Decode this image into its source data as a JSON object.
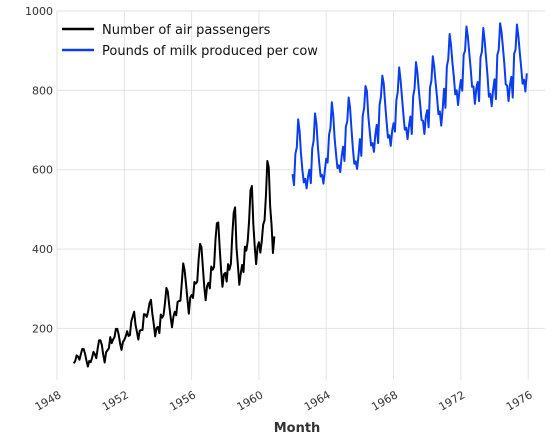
{
  "chart_data": {
    "type": "line",
    "xlabel": "Month",
    "ylabel": "",
    "xlim": [
      1948.0,
      1977.0
    ],
    "ylim": [
      70,
      1000
    ],
    "grid": true,
    "legend_position": "top-left",
    "x_ticks": [
      1948,
      1952,
      1956,
      1960,
      1964,
      1968,
      1972,
      1976
    ],
    "y_ticks": [
      200,
      400,
      600,
      800,
      1000
    ],
    "series": [
      {
        "name": "Number of air passengers",
        "color": "#000000",
        "start_year": 1949,
        "values": [
          112,
          118,
          132,
          129,
          121,
          135,
          148,
          148,
          136,
          119,
          104,
          118,
          115,
          126,
          141,
          135,
          125,
          149,
          170,
          170,
          158,
          133,
          114,
          140,
          145,
          150,
          178,
          163,
          172,
          178,
          199,
          199,
          184,
          162,
          146,
          166,
          171,
          180,
          193,
          181,
          183,
          218,
          230,
          242,
          209,
          191,
          172,
          194,
          196,
          196,
          236,
          235,
          229,
          243,
          264,
          272,
          237,
          211,
          180,
          201,
          204,
          188,
          235,
          227,
          234,
          264,
          302,
          293,
          259,
          229,
          203,
          229,
          242,
          233,
          267,
          269,
          270,
          315,
          364,
          347,
          312,
          274,
          237,
          278,
          284,
          277,
          317,
          313,
          318,
          374,
          413,
          405,
          355,
          306,
          271,
          306,
          315,
          301,
          356,
          348,
          355,
          422,
          465,
          467,
          404,
          347,
          305,
          336,
          340,
          318,
          362,
          348,
          363,
          435,
          491,
          505,
          404,
          359,
          310,
          337,
          360,
          342,
          406,
          396,
          420,
          472,
          548,
          559,
          463,
          407,
          362,
          405,
          417,
          391,
          419,
          461,
          472,
          535,
          622,
          606,
          508,
          461,
          390,
          432
        ]
      },
      {
        "name": "Pounds of milk produced per cow",
        "color": "#0a3cf0",
        "start_year": 1962,
        "values": [
          589,
          561,
          640,
          656,
          727,
          697,
          640,
          599,
          568,
          577,
          553,
          582,
          600,
          566,
          653,
          673,
          742,
          716,
          660,
          617,
          583,
          587,
          565,
          598,
          628,
          618,
          688,
          705,
          770,
          736,
          678,
          639,
          604,
          611,
          594,
          634,
          658,
          622,
          709,
          722,
          782,
          756,
          702,
          653,
          615,
          621,
          602,
          635,
          677,
          635,
          736,
          755,
          811,
          798,
          735,
          697,
          661,
          667,
          645,
          688,
          713,
          667,
          762,
          784,
          837,
          817,
          767,
          722,
          681,
          687,
          660,
          698,
          717,
          696,
          775,
          796,
          858,
          826,
          783,
          740,
          701,
          706,
          677,
          711,
          734,
          690,
          785,
          805,
          871,
          845,
          801,
          764,
          725,
          723,
          690,
          734,
          750,
          707,
          807,
          824,
          886,
          859,
          819,
          783,
          740,
          747,
          711,
          751,
          804,
          756,
          860,
          878,
          942,
          913,
          869,
          834,
          790,
          800,
          763,
          800,
          826,
          799,
          890,
          900,
          961,
          935,
          894,
          855,
          809,
          810,
          766,
          805,
          821,
          773,
          883,
          898,
          957,
          924,
          881,
          837,
          784,
          791,
          760,
          802,
          828,
          778,
          889,
          902,
          969,
          947,
          908,
          867,
          815,
          812,
          773,
          813,
          834,
          782,
          892,
          903,
          966,
          937,
          896,
          858,
          817,
          827,
          797,
          843
        ]
      }
    ]
  }
}
